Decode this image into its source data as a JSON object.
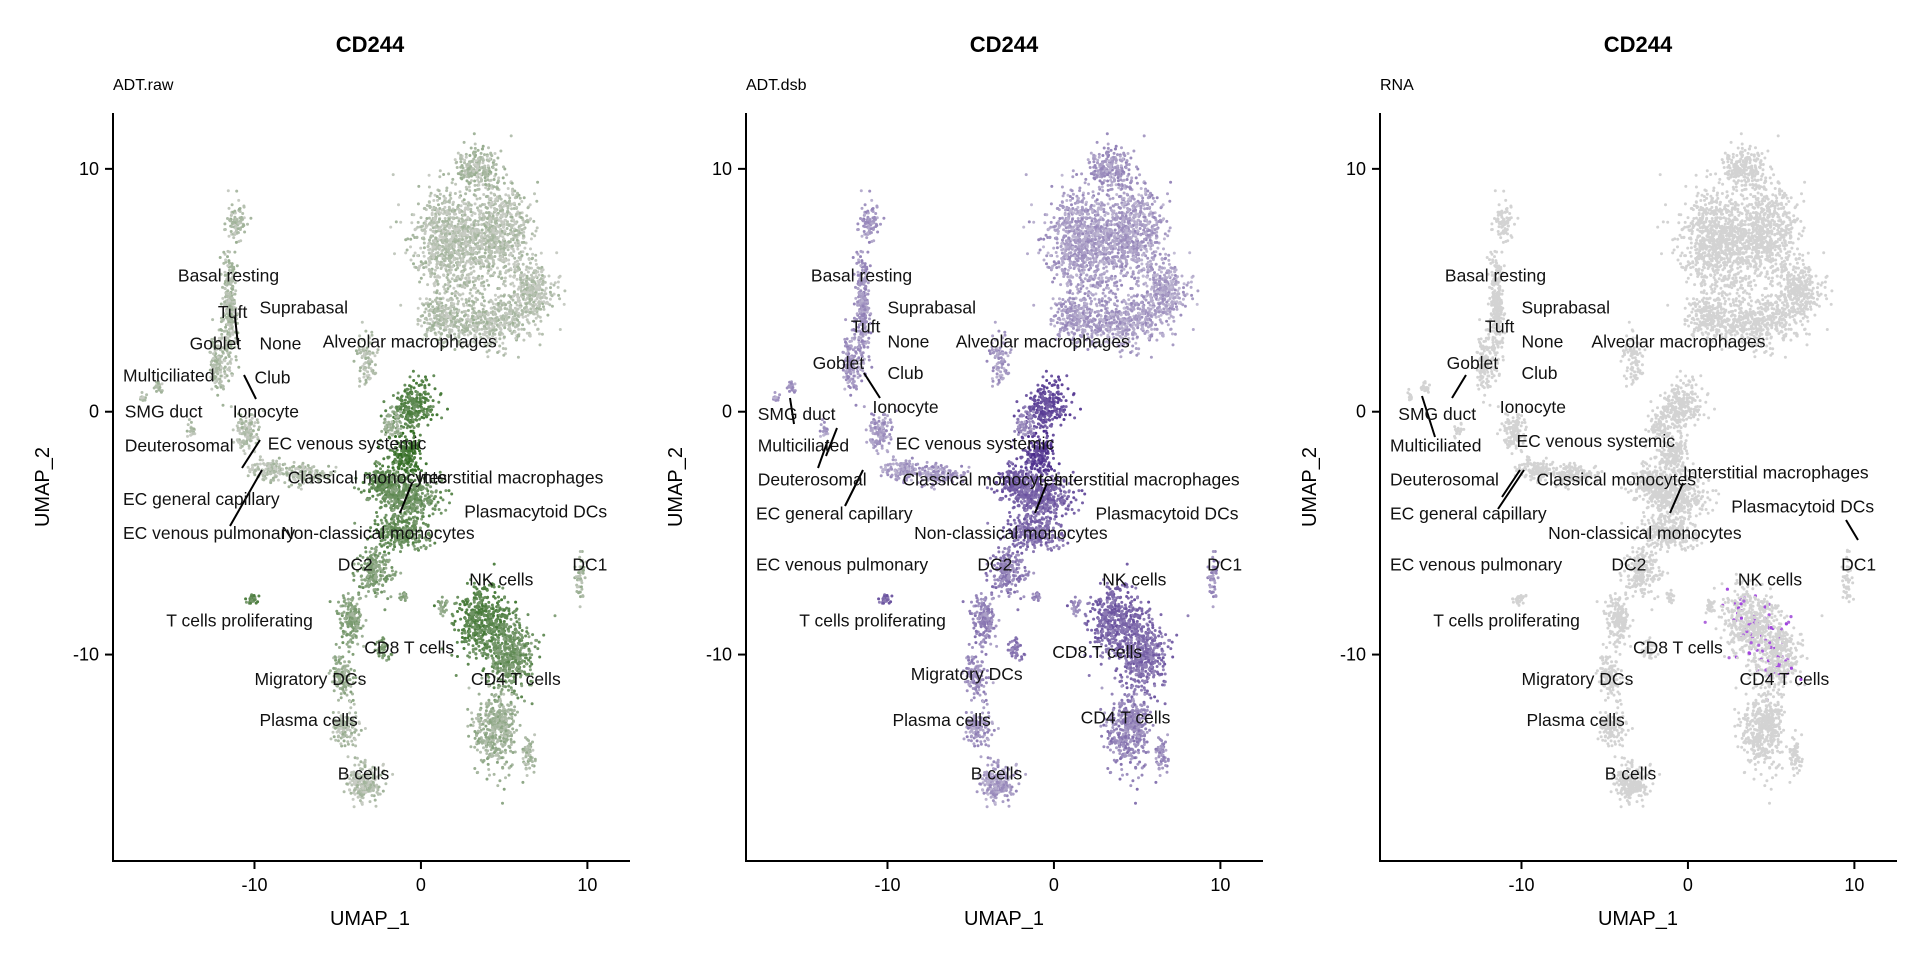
{
  "chart_data": [
    {
      "type": "scatter",
      "title": "CD244",
      "subtitle": "ADT.raw",
      "xlabel": "UMAP_1",
      "ylabel": "UMAP_2",
      "xlim": [
        -18.5,
        12.5
      ],
      "ylim": [
        -18.5,
        12.3
      ],
      "xticks": [
        -10,
        0,
        10
      ],
      "yticks": [
        10,
        0,
        -10
      ],
      "low_color": "#c8ccc4",
      "high_color": "#2e6b1e",
      "labels": [
        {
          "text": "Basal resting",
          "x": -14.6,
          "y": 5.6
        },
        {
          "text": "Tuft",
          "x": -12.2,
          "y": 4.1
        },
        {
          "text": "Suprabasal",
          "x": -9.7,
          "y": 4.3
        },
        {
          "text": "Goblet",
          "x": -13.9,
          "y": 2.8
        },
        {
          "text": "None",
          "x": -9.7,
          "y": 2.8
        },
        {
          "text": "Alveolar macrophages",
          "x": -5.9,
          "y": 2.9
        },
        {
          "text": "Multiciliated",
          "x": -17.9,
          "y": 1.5
        },
        {
          "text": "Club",
          "x": -10.0,
          "y": 1.4
        },
        {
          "text": "SMG duct",
          "x": -17.8,
          "y": 0.0
        },
        {
          "text": "Ionocyte",
          "x": -11.3,
          "y": 0.0
        },
        {
          "text": "Deuterosomal",
          "x": -17.8,
          "y": -1.4
        },
        {
          "text": "EC venous systemic",
          "x": -9.2,
          "y": -1.3
        },
        {
          "text": "Classical monocytes",
          "x": -8.0,
          "y": -2.7
        },
        {
          "text": "Interstitial macrophages",
          "x": -0.2,
          "y": -2.7
        },
        {
          "text": "EC general capillary",
          "x": -17.9,
          "y": -3.6
        },
        {
          "text": "Plasmacytoid DCs",
          "x": 2.6,
          "y": -4.1
        },
        {
          "text": "EC venous pulmonary",
          "x": -17.9,
          "y": -5.0
        },
        {
          "text": "Non-classical monocytes",
          "x": -8.4,
          "y": -5.0
        },
        {
          "text": "DC2",
          "x": -5.0,
          "y": -6.3
        },
        {
          "text": "DC1",
          "x": 9.1,
          "y": -6.3
        },
        {
          "text": "NK cells",
          "x": 2.9,
          "y": -6.9
        },
        {
          "text": "T cells proliferating",
          "x": -15.3,
          "y": -8.6
        },
        {
          "text": "CD8 T cells",
          "x": -3.4,
          "y": -9.7
        },
        {
          "text": "Migratory DCs",
          "x": -10.0,
          "y": -11.0
        },
        {
          "text": "CD4 T cells",
          "x": 3.0,
          "y": -11.0
        },
        {
          "text": "Plasma cells",
          "x": -9.7,
          "y": -12.7
        },
        {
          "text": "B cells",
          "x": -5.0,
          "y": -14.9
        }
      ]
    },
    {
      "type": "scatter",
      "title": "CD244",
      "subtitle": "ADT.dsb",
      "xlabel": "UMAP_1",
      "ylabel": "UMAP_2",
      "xlim": [
        -18.5,
        12.5
      ],
      "ylim": [
        -18.5,
        12.3
      ],
      "xticks": [
        -10,
        0,
        10
      ],
      "yticks": [
        10,
        0,
        -10
      ],
      "low_color": "#cbc6da",
      "high_color": "#4a2b8c",
      "labels": [
        {
          "text": "Basal resting",
          "x": -14.6,
          "y": 5.6
        },
        {
          "text": "Suprabasal",
          "x": -10.0,
          "y": 4.3
        },
        {
          "text": "Tuft",
          "x": -12.2,
          "y": 3.5
        },
        {
          "text": "None",
          "x": -10.0,
          "y": 2.9
        },
        {
          "text": "Alveolar macrophages",
          "x": -5.9,
          "y": 2.9
        },
        {
          "text": "Goblet",
          "x": -14.5,
          "y": 2.0
        },
        {
          "text": "Club",
          "x": -10.0,
          "y": 1.6
        },
        {
          "text": "SMG duct",
          "x": -17.8,
          "y": -0.1
        },
        {
          "text": "Ionocyte",
          "x": -10.9,
          "y": 0.2
        },
        {
          "text": "Multiciliated",
          "x": -17.8,
          "y": -1.4
        },
        {
          "text": "EC venous systemic",
          "x": -9.5,
          "y": -1.3
        },
        {
          "text": "Deuterosomal",
          "x": -17.8,
          "y": -2.8
        },
        {
          "text": "Classical monocytes",
          "x": -9.1,
          "y": -2.8
        },
        {
          "text": "Interstitial macrophages",
          "x": 0.0,
          "y": -2.8
        },
        {
          "text": "EC general capillary",
          "x": -17.9,
          "y": -4.2
        },
        {
          "text": "Plasmacytoid DCs",
          "x": 2.5,
          "y": -4.2
        },
        {
          "text": "Non-classical monocytes",
          "x": -8.4,
          "y": -5.0
        },
        {
          "text": "EC venous pulmonary",
          "x": -17.9,
          "y": -6.3
        },
        {
          "text": "DC2",
          "x": -4.6,
          "y": -6.3
        },
        {
          "text": "DC1",
          "x": 9.2,
          "y": -6.3
        },
        {
          "text": "NK cells",
          "x": 2.9,
          "y": -6.9
        },
        {
          "text": "T cells proliferating",
          "x": -15.3,
          "y": -8.6
        },
        {
          "text": "CD8 T cells",
          "x": -0.1,
          "y": -9.9
        },
        {
          "text": "Migratory DCs",
          "x": -8.6,
          "y": -10.8
        },
        {
          "text": "Plasma cells",
          "x": -9.7,
          "y": -12.7
        },
        {
          "text": "CD4 T cells",
          "x": 1.6,
          "y": -12.6
        },
        {
          "text": "B cells",
          "x": -5.0,
          "y": -14.9
        }
      ]
    },
    {
      "type": "scatter",
      "title": "CD244",
      "subtitle": "RNA",
      "xlabel": "UMAP_1",
      "ylabel": "UMAP_2",
      "xlim": [
        -18.5,
        12.5
      ],
      "ylim": [
        -18.5,
        12.3
      ],
      "xticks": [
        -10,
        0,
        10
      ],
      "yticks": [
        10,
        0,
        -10
      ],
      "low_color": "#d3d3d3",
      "high_color": "#a03fe0",
      "labels": [
        {
          "text": "Basal resting",
          "x": -14.6,
          "y": 5.6
        },
        {
          "text": "Suprabasal",
          "x": -10.0,
          "y": 4.3
        },
        {
          "text": "Tuft",
          "x": -12.2,
          "y": 3.5
        },
        {
          "text": "None",
          "x": -10.0,
          "y": 2.9
        },
        {
          "text": "Alveolar macrophages",
          "x": -5.8,
          "y": 2.9
        },
        {
          "text": "Goblet",
          "x": -14.5,
          "y": 2.0
        },
        {
          "text": "Club",
          "x": -10.0,
          "y": 1.6
        },
        {
          "text": "SMG duct",
          "x": -17.4,
          "y": -0.1
        },
        {
          "text": "Ionocyte",
          "x": -11.3,
          "y": 0.2
        },
        {
          "text": "Multiciliated",
          "x": -17.9,
          "y": -1.4
        },
        {
          "text": "EC venous systemic",
          "x": -10.3,
          "y": -1.2
        },
        {
          "text": "Deuterosomal",
          "x": -17.9,
          "y": -2.8
        },
        {
          "text": "Classical monocytes",
          "x": -9.1,
          "y": -2.8
        },
        {
          "text": "Interstitial macrophages",
          "x": -0.3,
          "y": -2.5
        },
        {
          "text": "EC general capillary",
          "x": -17.9,
          "y": -4.2
        },
        {
          "text": "Plasmacytoid DCs",
          "x": 2.6,
          "y": -3.9
        },
        {
          "text": "Non-classical monocytes",
          "x": -8.4,
          "y": -5.0
        },
        {
          "text": "EC venous pulmonary",
          "x": -17.9,
          "y": -6.3
        },
        {
          "text": "DC2",
          "x": -4.6,
          "y": -6.3
        },
        {
          "text": "DC1",
          "x": 9.2,
          "y": -6.3
        },
        {
          "text": "NK cells",
          "x": 3.0,
          "y": -6.9
        },
        {
          "text": "T cells proliferating",
          "x": -15.3,
          "y": -8.6
        },
        {
          "text": "CD8 T cells",
          "x": -3.3,
          "y": -9.7
        },
        {
          "text": "Migratory DCs",
          "x": -10.0,
          "y": -11.0
        },
        {
          "text": "CD4 T cells",
          "x": 3.1,
          "y": -11.0
        },
        {
          "text": "Plasma cells",
          "x": -9.7,
          "y": -12.7
        },
        {
          "text": "B cells",
          "x": -5.0,
          "y": -14.9
        }
      ]
    }
  ]
}
